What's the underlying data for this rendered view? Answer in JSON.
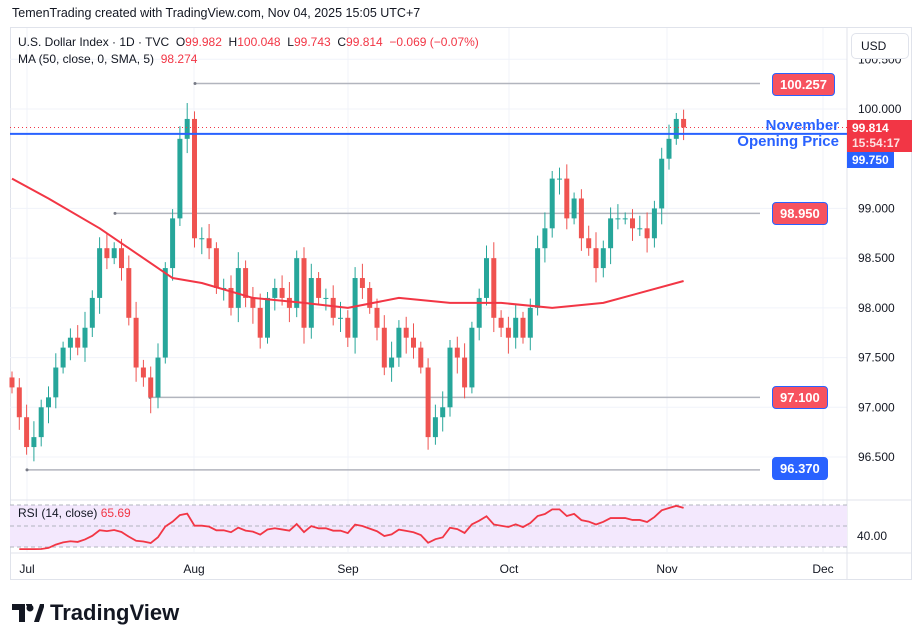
{
  "credit": "TemenTrading created with TradingView.com, Nov 04, 2025 15:05 UTC+7",
  "legend": {
    "symbol": "U.S. Dollar Index · 1D · TVC",
    "o_label": "O",
    "o": "99.982",
    "h_label": "H",
    "h": "100.048",
    "l_label": "L",
    "l": "99.743",
    "c_label": "C",
    "c": "99.814",
    "change": "−0.069 (−0.07%)",
    "ma_label": "MA (50, close, 0, SMA, 5)",
    "ma_value": "98.274"
  },
  "currency": "USD",
  "annotation": {
    "line1": "November",
    "line2": "Opening Price"
  },
  "levels": [
    {
      "label": "100.257",
      "value": 100.257,
      "color": "#f7525f"
    },
    {
      "label": "98.950",
      "value": 98.95,
      "color": "#f7525f"
    },
    {
      "label": "97.100",
      "value": 97.1,
      "color": "#f7525f"
    },
    {
      "label": "96.370",
      "value": 96.37,
      "color": "#2962ff"
    }
  ],
  "price_tags": {
    "last": "99.814",
    "countdown": "15:54:17",
    "open": "99.750"
  },
  "rsi": {
    "label": "RSI (14, close)",
    "value": "65.69",
    "axis_label": "40.00"
  },
  "logo": "TradingView",
  "colors": {
    "up": "#26a69a",
    "down": "#ef5350",
    "ma": "#f23645",
    "blue": "#2962ff"
  },
  "chart_data": {
    "type": "candlestick",
    "title": "U.S. Dollar Index · 1D · TVC",
    "y_ticks": [
      "100.500",
      "100.000",
      "99.000",
      "98.500",
      "98.000",
      "97.500",
      "97.000",
      "96.500"
    ],
    "ylim": [
      96.2,
      100.5
    ],
    "x_ticks": [
      "Jul",
      "Aug",
      "Sep",
      "Oct",
      "Nov",
      "Dec"
    ],
    "closes": [
      97.2,
      96.9,
      96.6,
      96.7,
      97.0,
      97.1,
      97.4,
      97.6,
      97.7,
      97.6,
      97.8,
      98.1,
      98.6,
      98.5,
      98.6,
      98.4,
      97.9,
      97.4,
      97.3,
      97.1,
      97.5,
      98.4,
      98.9,
      99.7,
      99.9,
      98.7,
      98.7,
      98.6,
      98.2,
      98.2,
      98.0,
      98.4,
      98.1,
      98.0,
      97.7,
      98.1,
      98.2,
      98.1,
      98.0,
      98.5,
      97.8,
      98.3,
      98.1,
      98.1,
      97.9,
      97.9,
      97.7,
      98.3,
      98.2,
      98.0,
      97.8,
      97.4,
      97.5,
      97.8,
      97.7,
      97.6,
      97.4,
      96.7,
      96.9,
      97.0,
      97.6,
      97.5,
      97.2,
      97.8,
      98.1,
      98.5,
      97.9,
      97.8,
      97.7,
      97.9,
      97.7,
      98.0,
      98.6,
      98.8,
      99.3,
      99.3,
      98.9,
      99.1,
      98.7,
      98.6,
      98.4,
      98.6,
      98.9,
      98.9,
      98.9,
      98.8,
      98.8,
      98.7,
      99.0,
      99.5,
      99.7,
      99.9,
      99.814
    ],
    "ma_points": [
      [
        0,
        99.3
      ],
      [
        5,
        99.1
      ],
      [
        12,
        98.8
      ],
      [
        17,
        98.55
      ],
      [
        22,
        98.3
      ],
      [
        26,
        98.25
      ],
      [
        33,
        98.1
      ],
      [
        40,
        98.05
      ],
      [
        46,
        98.0
      ],
      [
        53,
        98.1
      ],
      [
        60,
        98.05
      ],
      [
        67,
        98.05
      ],
      [
        74,
        98.0
      ],
      [
        81,
        98.05
      ],
      [
        86,
        98.15
      ],
      [
        92,
        98.27
      ]
    ],
    "horizontal_lines": {
      "november_open": 99.75,
      "last_price": 99.814
    }
  }
}
